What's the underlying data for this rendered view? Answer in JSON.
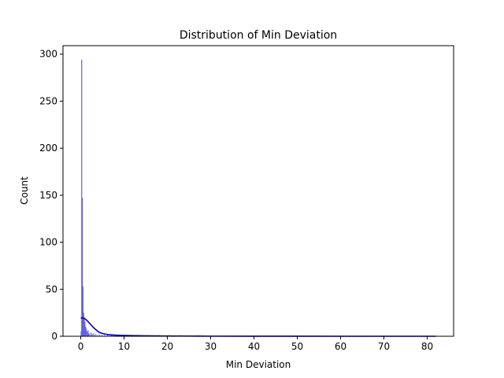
{
  "chart_data": {
    "type": "histogram",
    "title": "Distribution of Min Deviation",
    "xlabel": "Min Deviation",
    "ylabel": "Count",
    "xlim": [
      -4.1,
      86.1
    ],
    "ylim": [
      0,
      309
    ],
    "xticks": [
      0,
      10,
      20,
      30,
      40,
      50,
      60,
      70,
      80
    ],
    "yticks": [
      0,
      50,
      100,
      150,
      200,
      250,
      300
    ],
    "bar_color": "#5555dd",
    "kde_color": "#0000cc",
    "bins": [
      {
        "x": 0.0,
        "count": 5
      },
      {
        "x": 0.15,
        "count": 294
      },
      {
        "x": 0.3,
        "count": 147
      },
      {
        "x": 0.45,
        "count": 53
      },
      {
        "x": 0.6,
        "count": 25
      },
      {
        "x": 0.75,
        "count": 20
      },
      {
        "x": 0.9,
        "count": 15
      },
      {
        "x": 1.05,
        "count": 10
      },
      {
        "x": 1.2,
        "count": 8
      },
      {
        "x": 1.4,
        "count": 5
      },
      {
        "x": 1.6,
        "count": 6
      },
      {
        "x": 1.8,
        "count": 3
      },
      {
        "x": 2.0,
        "count": 2
      },
      {
        "x": 2.3,
        "count": 4
      },
      {
        "x": 2.6,
        "count": 2
      },
      {
        "x": 2.9,
        "count": 3
      },
      {
        "x": 3.3,
        "count": 2
      },
      {
        "x": 3.7,
        "count": 1
      },
      {
        "x": 4.2,
        "count": 2
      },
      {
        "x": 4.8,
        "count": 1
      },
      {
        "x": 5.4,
        "count": 1
      },
      {
        "x": 6.1,
        "count": 1
      },
      {
        "x": 7.0,
        "count": 1
      },
      {
        "x": 8.2,
        "count": 1
      },
      {
        "x": 9.5,
        "count": 1
      },
      {
        "x": 11.0,
        "count": 1
      },
      {
        "x": 13.0,
        "count": 1
      },
      {
        "x": 15.5,
        "count": 1
      },
      {
        "x": 18.0,
        "count": 1
      },
      {
        "x": 20.3,
        "count": 1
      },
      {
        "x": 23.0,
        "count": 1
      },
      {
        "x": 27.0,
        "count": 1
      }
    ],
    "bin_width": 0.15,
    "kde": {
      "x": [
        0,
        0.5,
        1,
        1.5,
        2,
        2.5,
        3,
        3.5,
        4,
        4.5,
        5,
        6,
        7,
        8,
        10,
        12,
        15,
        20,
        25,
        30,
        40,
        50,
        60,
        70,
        82
      ],
      "y": [
        19.5,
        19.5,
        18.5,
        16.5,
        14,
        11.5,
        9,
        7,
        5,
        3.8,
        3,
        2,
        1.5,
        1.2,
        0.9,
        0.7,
        0.5,
        0.3,
        0.2,
        0.1,
        0.05,
        0.02,
        0.01,
        0.0,
        0.0
      ]
    }
  }
}
